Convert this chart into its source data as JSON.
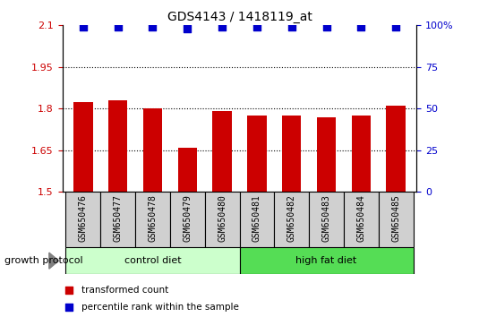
{
  "title": "GDS4143 / 1418119_at",
  "categories": [
    "GSM650476",
    "GSM650477",
    "GSM650478",
    "GSM650479",
    "GSM650480",
    "GSM650481",
    "GSM650482",
    "GSM650483",
    "GSM650484",
    "GSM650485"
  ],
  "bar_values": [
    1.825,
    1.83,
    1.8,
    1.66,
    1.79,
    1.775,
    1.775,
    1.77,
    1.775,
    1.81
  ],
  "percentile_values": [
    99,
    99,
    99,
    98,
    99,
    99,
    99,
    99,
    99,
    99
  ],
  "bar_color": "#cc0000",
  "dot_color": "#0000cc",
  "ylim_left": [
    1.5,
    2.1
  ],
  "ylim_right": [
    0,
    100
  ],
  "yticks_left": [
    1.5,
    1.65,
    1.8,
    1.95,
    2.1
  ],
  "yticks_right": [
    0,
    25,
    50,
    75,
    100
  ],
  "ytick_labels_left": [
    "1.5",
    "1.65",
    "1.8",
    "1.95",
    "2.1"
  ],
  "ytick_labels_right": [
    "0",
    "25",
    "50",
    "75",
    "100%"
  ],
  "hlines": [
    1.65,
    1.8,
    1.95
  ],
  "group1_label": "control diet",
  "group2_label": "high fat diet",
  "group1_indices": [
    0,
    1,
    2,
    3,
    4
  ],
  "group2_indices": [
    5,
    6,
    7,
    8,
    9
  ],
  "group_label": "growth protocol",
  "legend1_label": "transformed count",
  "legend2_label": "percentile rank within the sample",
  "group1_color": "#ccffcc",
  "group2_color": "#55dd55",
  "tick_bg_color": "#d0d0d0",
  "bar_width": 0.55,
  "dot_size": 35,
  "fig_width": 5.35,
  "fig_height": 3.54
}
